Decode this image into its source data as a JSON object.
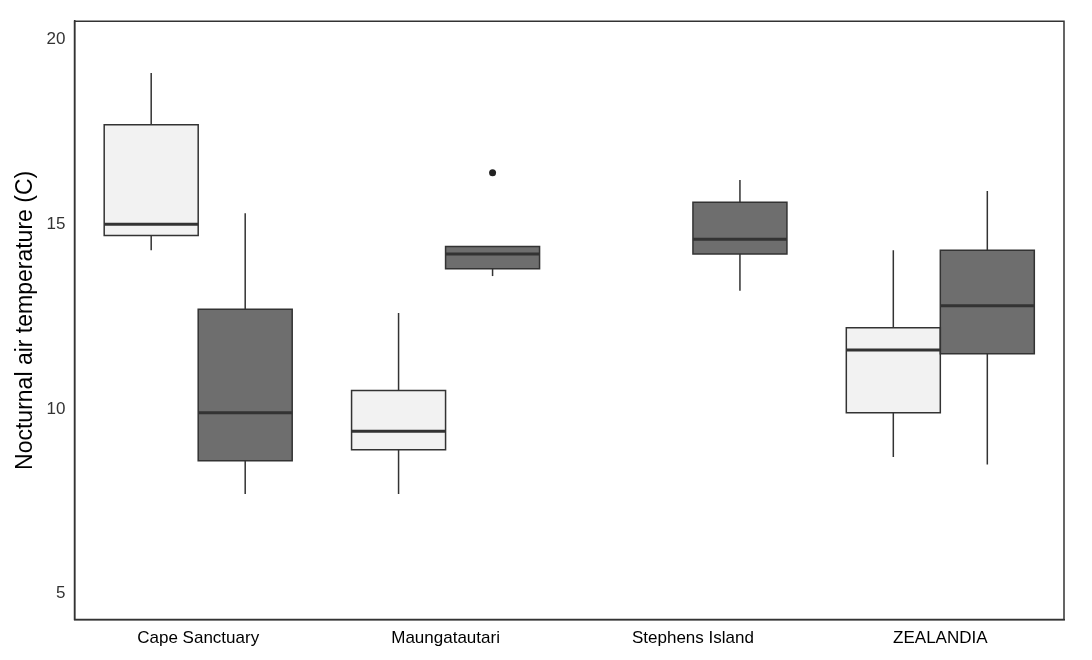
{
  "chart_data": {
    "type": "box",
    "ylabel": "Nocturnal air temperature (C)",
    "categories": [
      "Cape Sanctuary",
      "Maungatautari",
      "Stephens Island",
      "ZEALANDIA"
    ],
    "ylim": [
      4.3,
      20.5
    ],
    "yticks": [
      5,
      10,
      15,
      20
    ],
    "grid": false,
    "legend": false,
    "series": [
      {
        "color": "#f2f2f2",
        "boxes": [
          {
            "low": 14.3,
            "q1": 14.7,
            "median": 15.0,
            "q3": 17.7,
            "high": 19.1
          },
          {
            "low": 7.7,
            "q1": 8.9,
            "median": 9.4,
            "q3": 10.5,
            "high": 12.6
          },
          null,
          {
            "low": 8.7,
            "q1": 9.9,
            "median": 11.6,
            "q3": 12.2,
            "high": 14.3
          }
        ]
      },
      {
        "color": "#6e6e6e",
        "boxes": [
          {
            "low": 7.7,
            "q1": 8.6,
            "median": 9.9,
            "q3": 12.7,
            "high": 15.3
          },
          {
            "low": 13.6,
            "q1": 13.8,
            "median": 14.2,
            "q3": 14.4,
            "high": 14.4,
            "outliers": [
              16.4
            ]
          },
          {
            "low": 13.2,
            "q1": 14.2,
            "median": 14.6,
            "q3": 15.6,
            "high": 16.2
          },
          {
            "low": 8.5,
            "q1": 11.5,
            "median": 12.8,
            "q3": 14.3,
            "high": 15.9
          }
        ]
      }
    ]
  }
}
